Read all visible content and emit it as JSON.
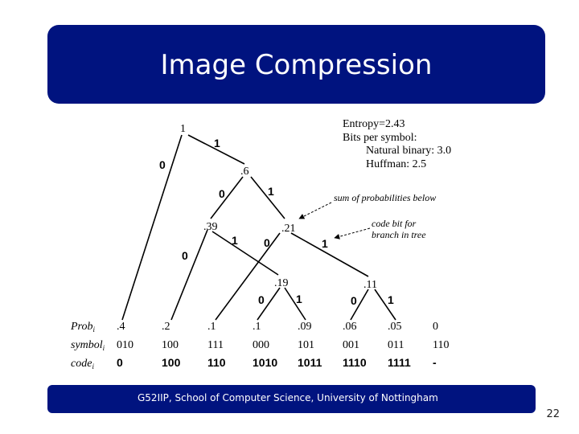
{
  "slide": {
    "title": "Image Compression",
    "footer": "G52IIP, School of Computer Science, University of Nottingham",
    "page_number": "22"
  },
  "colors": {
    "bar": "#00137f",
    "text": "#000000"
  },
  "info": {
    "entropy": "Entropy=2.43",
    "bits_per_symbol": "Bits per symbol:",
    "natural_binary": "Natural binary: 3.0",
    "huffman": "Huffman: 2.5"
  },
  "annotations": {
    "sum_prob": "sum of probabilities below",
    "code_bit_1": "code bit for",
    "code_bit_2": "branch in tree"
  },
  "tree": {
    "nodes": {
      "root": "1",
      "n6": ".6",
      "n39": ".39",
      "n21": ".21",
      "n19": ".19",
      "n11": ".11"
    },
    "edge_labels": {
      "root_left": "0",
      "root_right": "1",
      "n6_left": "0",
      "n6_right": "1",
      "n39_left": "0",
      "n39_right": "1",
      "n21_left": "0",
      "n21_right": "1",
      "n19_left": "0",
      "n19_right": "1",
      "n11_left": "0",
      "n11_right": "1"
    }
  },
  "table": {
    "row_labels": [
      "Prob",
      "symbol",
      "code"
    ],
    "row_subscripts": [
      "i",
      "i",
      "i"
    ],
    "prob": [
      ".4",
      ".2",
      ".1",
      ".1",
      ".09",
      ".06",
      ".05",
      "0"
    ],
    "symbol": [
      "010",
      "100",
      "111",
      "000",
      "101",
      "001",
      "011",
      "110"
    ],
    "code": [
      "0",
      "100",
      "110",
      "1010",
      "1011",
      "1110",
      "1111",
      "-"
    ]
  }
}
